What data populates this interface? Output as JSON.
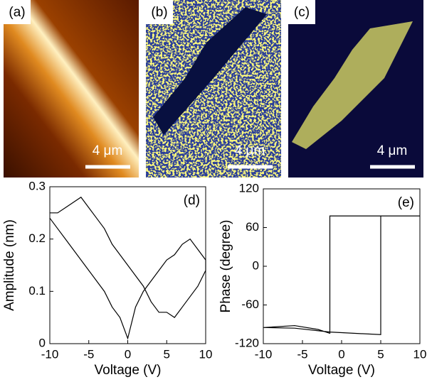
{
  "images": [
    {
      "label": "(a)",
      "scale_bar": "4 μm"
    },
    {
      "label": "(b)",
      "scale_bar": "4 μm"
    },
    {
      "label": "(c)",
      "scale_bar": "4 μm"
    }
  ],
  "chart_data": [
    {
      "type": "line",
      "annotation": "(d)",
      "x_label": "Voltage (V)",
      "y_label": "Amplitude (nm)",
      "color": "#000000",
      "x": [
        -10,
        -9,
        -8,
        -7,
        -6,
        -5,
        -4,
        -3,
        -2,
        -1,
        0,
        1,
        2,
        3,
        4,
        5,
        6,
        7,
        8,
        9,
        10,
        10,
        9,
        8,
        7,
        6,
        5,
        4,
        3,
        2,
        1,
        0,
        -1,
        -2,
        -3,
        -4,
        -5,
        -6,
        -7,
        -8,
        -9,
        -10
      ],
      "values": [
        0.25,
        0.25,
        0.26,
        0.27,
        0.28,
        0.26,
        0.24,
        0.22,
        0.19,
        0.17,
        0.15,
        0.13,
        0.11,
        0.08,
        0.06,
        0.06,
        0.05,
        0.07,
        0.09,
        0.11,
        0.14,
        0.16,
        0.18,
        0.2,
        0.19,
        0.17,
        0.16,
        0.14,
        0.12,
        0.1,
        0.07,
        0.01,
        0.05,
        0.07,
        0.1,
        0.12,
        0.14,
        0.16,
        0.18,
        0.2,
        0.22,
        0.24
      ],
      "xlim": [
        -10,
        10
      ],
      "xticks": [
        -10,
        -5,
        0,
        5,
        10
      ],
      "ylim": [
        0,
        0.3
      ],
      "yticks": [
        0,
        0.1,
        0.2,
        0.3
      ]
    },
    {
      "type": "line",
      "annotation": "(e)",
      "x_label": "Voltage (V)",
      "y_label": "Phase (degree)",
      "color": "#000000",
      "x": [
        -10,
        -6,
        -3,
        -1.5,
        -1.5,
        10,
        5,
        5,
        -1.5,
        -6,
        -10
      ],
      "values": [
        -95,
        -92,
        -98,
        -104,
        78,
        78,
        78,
        -106,
        -102,
        -96,
        -95
      ],
      "xlim": [
        -10,
        10
      ],
      "xticks": [
        -10,
        -5,
        0,
        5,
        10
      ],
      "ylim": [
        -120,
        120
      ],
      "yticks": [
        -120,
        -60,
        0,
        60,
        120
      ]
    }
  ]
}
